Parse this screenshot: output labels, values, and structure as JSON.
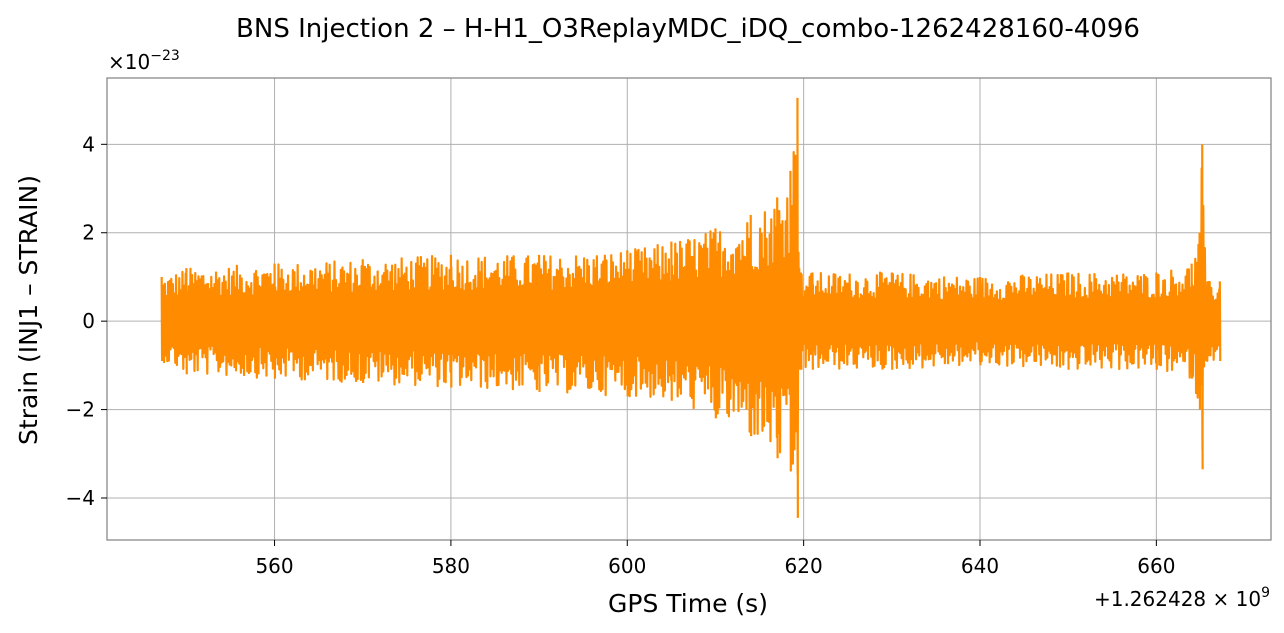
{
  "chart_data": {
    "type": "line",
    "title": "BNS Injection 2 – H-H1_O3ReplayMDC_iDQ_combo-1262428160-4096",
    "xlabel": "GPS Time (s)",
    "ylabel": "Strain (INJ1 – STRAIN)",
    "x_offset_label": "+1.262428 × 10",
    "x_offset_exponent": "9",
    "y_scale_label": "×10",
    "y_scale_exponent": "−23",
    "xlim": [
      541,
      673
    ],
    "ylim": [
      -4.95,
      5.5
    ],
    "x_ticks": [
      560,
      580,
      600,
      620,
      640,
      660
    ],
    "x_tick_labels": [
      "560",
      "580",
      "600",
      "620",
      "640",
      "660"
    ],
    "y_ticks": [
      -4,
      -2,
      0,
      2,
      4
    ],
    "y_tick_labels": [
      "−4",
      "−2",
      "0",
      "2",
      "4"
    ],
    "grid": true,
    "series": [
      {
        "color": "#ff8c00",
        "x_start": 547.2,
        "x_end": 667.2,
        "envelope_x": [
          547.2,
          550,
          560,
          570,
          580,
          590,
          600,
          605,
          610,
          614,
          617,
          618.5,
          619.3,
          619.5,
          619.7,
          621,
          630,
          640,
          650,
          660,
          664,
          664.9,
          665.2,
          665.6,
          667.2
        ],
        "envelope_upper": [
          1.0,
          1.2,
          1.3,
          1.4,
          1.5,
          1.5,
          1.6,
          1.8,
          2.1,
          2.4,
          2.8,
          3.4,
          5.05,
          1.2,
          1.1,
          1.1,
          1.1,
          1.0,
          1.1,
          1.1,
          1.3,
          2.0,
          4.0,
          0.9,
          0.9
        ],
        "envelope_lower": [
          -0.9,
          -1.2,
          -1.3,
          -1.4,
          -1.5,
          -1.6,
          -1.7,
          -1.8,
          -2.2,
          -2.6,
          -3.1,
          -3.4,
          -4.45,
          -1.1,
          -1.1,
          -1.1,
          -1.1,
          -1.0,
          -1.1,
          -1.1,
          -1.3,
          -2.0,
          -3.35,
          -0.9,
          -0.9
        ]
      }
    ]
  }
}
